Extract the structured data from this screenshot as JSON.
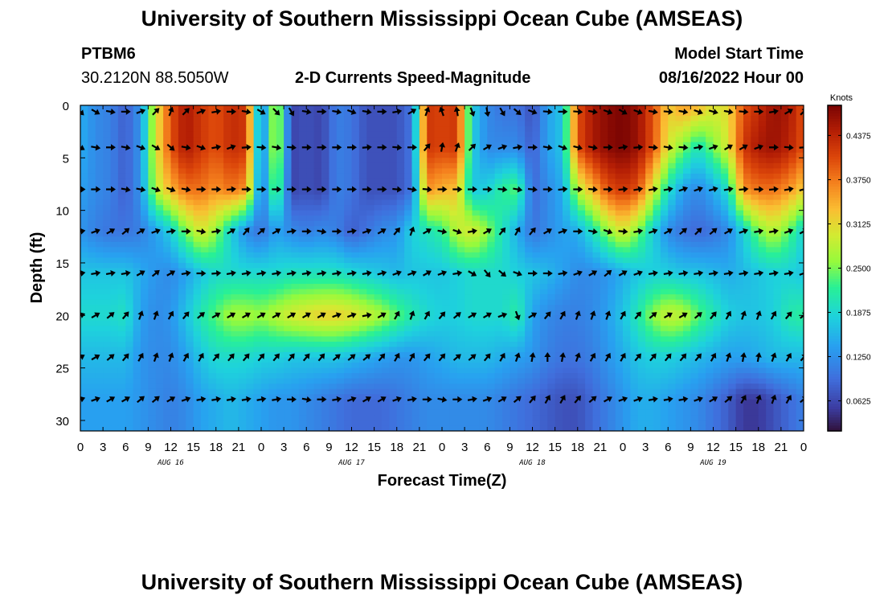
{
  "header": {
    "title_top": "University of Southern Mississippi Ocean Cube (AMSEAS)",
    "title_bottom": "University of Southern Mississippi Ocean Cube (AMSEAS)",
    "station": "PTBM6",
    "coords": "30.2120N  88.5050W",
    "plot_title": "2-D Currents Speed-Magnitude",
    "model_label": "Model Start Time",
    "model_time": "08/16/2022 Hour 00"
  },
  "chart_data": {
    "type": "heatmap",
    "title": "2-D Currents Speed-Magnitude",
    "xlabel": "Forecast Time(Z)",
    "ylabel": "Depth (ft)",
    "x_range_hours": [
      0,
      96
    ],
    "ylim": [
      0,
      31
    ],
    "y_ticks": [
      0,
      5,
      10,
      15,
      20,
      25,
      30
    ],
    "x_tick_labels": [
      "0",
      "3",
      "6",
      "9",
      "12",
      "15",
      "18",
      "21",
      "0",
      "3",
      "6",
      "9",
      "12",
      "15",
      "18",
      "21",
      "0",
      "3",
      "6",
      "9",
      "12",
      "15",
      "18",
      "21",
      "0",
      "3",
      "6",
      "9",
      "12",
      "15",
      "18",
      "21",
      "0"
    ],
    "day_labels": [
      "AUG 16",
      "AUG 17",
      "AUG 18",
      "AUG 19"
    ],
    "colorbar": {
      "label": "Knots",
      "ticks": [
        "0.0625",
        "0.1250",
        "0.1875",
        "0.2500",
        "0.3125",
        "0.3750",
        "0.4375"
      ],
      "min": 0.02,
      "max": 0.48
    },
    "depth_levels_ft": [
      0.3,
      4,
      8,
      12,
      16,
      20,
      24,
      28
    ],
    "speed_knots_by_depth": [
      [
        0.15,
        0.12,
        0.11,
        0.08,
        0.13,
        0.3,
        0.4,
        0.45,
        0.42,
        0.4,
        0.43,
        0.42,
        0.1,
        0.3,
        0.06,
        0.07,
        0.06,
        0.11,
        0.1,
        0.07,
        0.07,
        0.07,
        0.1,
        0.42,
        0.41,
        0.42,
        0.18,
        0.12,
        0.1,
        0.1,
        0.07,
        0.14,
        0.17,
        0.4,
        0.45,
        0.47,
        0.48,
        0.46,
        0.4,
        0.32,
        0.35,
        0.33,
        0.3,
        0.31,
        0.4,
        0.43,
        0.46,
        0.45,
        0.4
      ],
      [
        0.15,
        0.12,
        0.11,
        0.08,
        0.13,
        0.3,
        0.4,
        0.45,
        0.42,
        0.4,
        0.43,
        0.42,
        0.1,
        0.3,
        0.06,
        0.07,
        0.06,
        0.11,
        0.1,
        0.07,
        0.07,
        0.07,
        0.1,
        0.42,
        0.41,
        0.42,
        0.18,
        0.12,
        0.12,
        0.12,
        0.08,
        0.14,
        0.17,
        0.4,
        0.45,
        0.47,
        0.48,
        0.46,
        0.4,
        0.3,
        0.25,
        0.2,
        0.25,
        0.3,
        0.42,
        0.45,
        0.46,
        0.44,
        0.4
      ],
      [
        0.14,
        0.12,
        0.11,
        0.08,
        0.13,
        0.28,
        0.34,
        0.38,
        0.38,
        0.36,
        0.38,
        0.36,
        0.1,
        0.26,
        0.06,
        0.07,
        0.06,
        0.11,
        0.1,
        0.07,
        0.07,
        0.07,
        0.1,
        0.36,
        0.34,
        0.33,
        0.17,
        0.18,
        0.22,
        0.24,
        0.09,
        0.12,
        0.15,
        0.28,
        0.34,
        0.4,
        0.42,
        0.4,
        0.3,
        0.2,
        0.14,
        0.12,
        0.15,
        0.2,
        0.36,
        0.38,
        0.38,
        0.36,
        0.32
      ],
      [
        0.13,
        0.11,
        0.1,
        0.1,
        0.11,
        0.14,
        0.18,
        0.25,
        0.3,
        0.26,
        0.18,
        0.12,
        0.1,
        0.14,
        0.12,
        0.11,
        0.12,
        0.11,
        0.08,
        0.1,
        0.12,
        0.13,
        0.18,
        0.2,
        0.22,
        0.28,
        0.3,
        0.26,
        0.2,
        0.15,
        0.1,
        0.12,
        0.14,
        0.15,
        0.2,
        0.26,
        0.3,
        0.25,
        0.18,
        0.12,
        0.1,
        0.09,
        0.1,
        0.12,
        0.18,
        0.25,
        0.28,
        0.24,
        0.18
      ],
      [
        0.17,
        0.17,
        0.17,
        0.17,
        0.15,
        0.13,
        0.12,
        0.14,
        0.17,
        0.19,
        0.19,
        0.19,
        0.19,
        0.19,
        0.2,
        0.2,
        0.2,
        0.2,
        0.19,
        0.18,
        0.17,
        0.16,
        0.17,
        0.17,
        0.17,
        0.18,
        0.19,
        0.19,
        0.19,
        0.18,
        0.17,
        0.16,
        0.14,
        0.12,
        0.12,
        0.13,
        0.15,
        0.17,
        0.18,
        0.18,
        0.17,
        0.17,
        0.16,
        0.15,
        0.16,
        0.17,
        0.18,
        0.18,
        0.17
      ],
      [
        0.19,
        0.19,
        0.19,
        0.2,
        0.14,
        0.12,
        0.13,
        0.17,
        0.21,
        0.24,
        0.27,
        0.27,
        0.26,
        0.28,
        0.3,
        0.31,
        0.32,
        0.32,
        0.31,
        0.29,
        0.27,
        0.24,
        0.21,
        0.19,
        0.18,
        0.18,
        0.19,
        0.19,
        0.19,
        0.22,
        0.14,
        0.12,
        0.11,
        0.11,
        0.12,
        0.14,
        0.17,
        0.21,
        0.26,
        0.29,
        0.28,
        0.24,
        0.21,
        0.18,
        0.17,
        0.17,
        0.18,
        0.21,
        0.22
      ],
      [
        0.16,
        0.16,
        0.16,
        0.16,
        0.13,
        0.12,
        0.12,
        0.14,
        0.17,
        0.19,
        0.19,
        0.19,
        0.18,
        0.18,
        0.17,
        0.17,
        0.17,
        0.17,
        0.16,
        0.15,
        0.14,
        0.13,
        0.13,
        0.14,
        0.15,
        0.16,
        0.16,
        0.16,
        0.15,
        0.14,
        0.13,
        0.11,
        0.1,
        0.1,
        0.11,
        0.13,
        0.15,
        0.17,
        0.18,
        0.18,
        0.17,
        0.16,
        0.15,
        0.14,
        0.14,
        0.15,
        0.16,
        0.16,
        0.16
      ],
      [
        0.14,
        0.14,
        0.14,
        0.14,
        0.13,
        0.12,
        0.11,
        0.12,
        0.14,
        0.15,
        0.16,
        0.15,
        0.14,
        0.13,
        0.13,
        0.12,
        0.11,
        0.1,
        0.09,
        0.09,
        0.09,
        0.1,
        0.11,
        0.12,
        0.12,
        0.12,
        0.12,
        0.12,
        0.11,
        0.1,
        0.09,
        0.08,
        0.07,
        0.07,
        0.09,
        0.11,
        0.13,
        0.15,
        0.15,
        0.14,
        0.13,
        0.12,
        0.1,
        0.08,
        0.05,
        0.05,
        0.07,
        0.09,
        0.11
      ]
    ],
    "arrow_direction_deg_by_depth": [
      [
        135,
        120,
        100,
        90,
        70,
        45,
        20,
        45,
        70,
        80,
        90,
        100,
        120,
        135,
        150,
        100,
        90,
        100,
        110,
        100,
        90,
        80,
        60,
        20,
        -20,
        -10,
        160,
        170,
        150,
        130,
        110,
        95,
        90,
        95,
        100,
        110,
        120,
        110,
        100,
        95,
        100,
        110,
        105,
        100,
        95,
        90,
        80,
        60,
        45
      ],
      [
        120,
        100,
        90,
        100,
        110,
        120,
        130,
        100,
        110,
        80,
        70,
        85,
        95,
        100,
        95,
        90,
        90,
        90,
        90,
        85,
        90,
        95,
        90,
        40,
        10,
        20,
        45,
        60,
        70,
        80,
        90,
        100,
        110,
        105,
        100,
        90,
        80,
        85,
        95,
        100,
        95,
        80,
        70,
        60,
        60,
        70,
        90,
        95,
        85
      ],
      [
        90,
        90,
        90,
        100,
        100,
        110,
        110,
        100,
        90,
        90,
        85,
        90,
        90,
        90,
        90,
        90,
        90,
        90,
        90,
        90,
        90,
        95,
        100,
        95,
        90,
        90,
        90,
        90,
        95,
        100,
        95,
        90,
        85,
        90,
        95,
        90,
        85,
        80,
        80,
        80,
        70,
        70,
        75,
        80,
        85,
        90,
        85,
        80,
        75
      ],
      [
        80,
        70,
        60,
        50,
        60,
        70,
        80,
        90,
        100,
        80,
        60,
        40,
        50,
        60,
        80,
        90,
        100,
        90,
        80,
        70,
        60,
        40,
        20,
        60,
        100,
        110,
        80,
        60,
        40,
        30,
        40,
        60,
        70,
        90,
        100,
        110,
        95,
        80,
        70,
        60,
        50,
        45,
        50,
        60,
        70,
        80,
        80,
        70,
        60
      ],
      [
        80,
        80,
        80,
        80,
        60,
        50,
        60,
        80,
        90,
        85,
        80,
        80,
        80,
        80,
        80,
        80,
        80,
        80,
        80,
        80,
        75,
        70,
        70,
        60,
        70,
        80,
        120,
        140,
        130,
        110,
        90,
        90,
        80,
        70,
        60,
        50,
        60,
        70,
        80,
        80,
        80,
        80,
        80,
        80,
        80,
        80,
        80,
        80,
        70
      ],
      [
        70,
        60,
        50,
        40,
        20,
        20,
        30,
        40,
        50,
        60,
        60,
        60,
        60,
        60,
        60,
        60,
        60,
        70,
        70,
        80,
        60,
        30,
        20,
        30,
        40,
        50,
        60,
        60,
        70,
        160,
        60,
        40,
        30,
        20,
        20,
        20,
        30,
        40,
        50,
        60,
        60,
        50,
        40,
        30,
        20,
        20,
        30,
        40,
        50
      ],
      [
        60,
        60,
        50,
        40,
        30,
        20,
        20,
        30,
        30,
        40,
        40,
        40,
        40,
        40,
        40,
        40,
        40,
        50,
        50,
        50,
        40,
        30,
        30,
        40,
        40,
        50,
        50,
        40,
        30,
        20,
        10,
        0,
        10,
        20,
        30,
        30,
        30,
        40,
        40,
        40,
        40,
        40,
        30,
        20,
        10,
        10,
        20,
        30,
        40
      ],
      [
        70,
        70,
        60,
        60,
        50,
        50,
        60,
        70,
        80,
        80,
        80,
        80,
        80,
        80,
        90,
        100,
        90,
        80,
        70,
        60,
        60,
        70,
        80,
        90,
        100,
        90,
        80,
        70,
        60,
        50,
        40,
        30,
        30,
        40,
        50,
        60,
        70,
        70,
        80,
        80,
        80,
        70,
        60,
        50,
        30,
        20,
        20,
        30,
        50
      ]
    ]
  }
}
